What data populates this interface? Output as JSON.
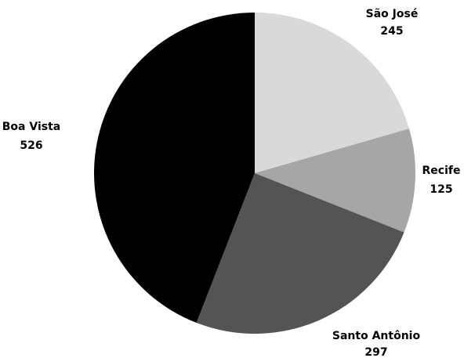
{
  "chart_data": {
    "type": "pie",
    "slices": [
      {
        "label": "São José",
        "value": 245,
        "color": "#d9d9d9"
      },
      {
        "label": "Recife",
        "value": 125,
        "color": "#a6a6a6"
      },
      {
        "label": "Santo Antônio",
        "value": 297,
        "color": "#545454"
      },
      {
        "label": "Boa Vista",
        "value": 526,
        "color": "#000000"
      }
    ],
    "title": "",
    "start_angle": "12 o'clock",
    "direction": "clockwise",
    "legend": "none",
    "data_labels": "outside, name above value"
  }
}
